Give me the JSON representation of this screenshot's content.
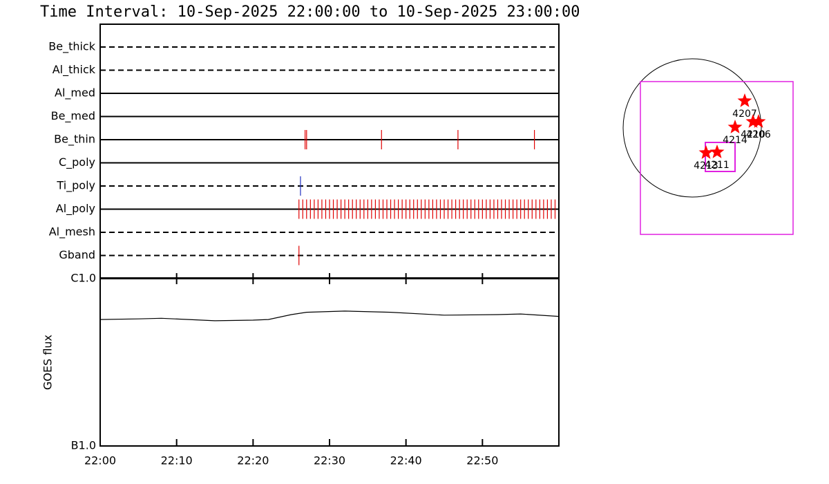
{
  "title": "Time Interval: 10-Sep-2025 22:00:00 to 10-Sep-2025 23:00:00",
  "chart_data": [
    {
      "type": "timeline",
      "categories": [
        "Be_thick",
        "Al_thick",
        "Al_med",
        "Be_med",
        "Be_thin",
        "C_poly",
        "Ti_poly",
        "Al_poly",
        "Al_mesh",
        "Gband"
      ],
      "line_styles": [
        "dashed",
        "dashed",
        "solid",
        "solid",
        "solid",
        "solid",
        "dashed",
        "solid",
        "dashed",
        "dashed"
      ],
      "colors": [
        "#e00000",
        "#e00000",
        "#e00000",
        "#e00000",
        "#e00000",
        "#e00000",
        "#2030c0",
        "#e00000",
        "#e00000",
        "#e00000"
      ],
      "events": [
        [],
        [],
        [],
        [],
        [
          1346.8,
          1347.0,
          1356.8,
          1366.8,
          1376.8
        ],
        [],
        [
          1346.2
        ],
        [
          1346.0,
          1346.5,
          1347.0,
          1347.5,
          1348.0,
          1348.5,
          1349.0,
          1349.5,
          1350.0,
          1350.5,
          1351.0,
          1351.5,
          1352.0,
          1352.5,
          1353.0,
          1353.5,
          1354.0,
          1354.5,
          1355.0,
          1355.5,
          1356.0,
          1356.5,
          1357.0,
          1357.5,
          1358.0,
          1358.5,
          1359.0,
          1359.5,
          1360.0,
          1360.5,
          1361.0,
          1361.5,
          1362.0,
          1362.5,
          1363.0,
          1363.5,
          1364.0,
          1364.5,
          1365.0,
          1365.5,
          1366.0,
          1366.5,
          1367.0,
          1367.5,
          1368.0,
          1368.5,
          1369.0,
          1369.5,
          1370.0,
          1370.5,
          1371.0,
          1371.5,
          1372.0,
          1372.5,
          1373.0,
          1373.5,
          1374.0,
          1374.5,
          1375.0,
          1375.5,
          1376.0,
          1376.5,
          1377.0,
          1377.5,
          1378.0,
          1378.5,
          1379.0,
          1379.5
        ],
        [],
        [
          1346.0
        ]
      ],
      "xlim": [
        1320,
        1380
      ]
    },
    {
      "type": "line",
      "ylabel": "GOES flux",
      "log_y": true,
      "color": "#000000",
      "x": [
        1320,
        1325,
        1328,
        1335,
        1340,
        1342,
        1345,
        1347,
        1352,
        1358,
        1365,
        1372,
        1375,
        1380
      ],
      "values": [
        5.7e-07,
        5.75e-07,
        5.8e-07,
        5.6e-07,
        5.65e-07,
        5.7e-07,
        6.1e-07,
        6.3e-07,
        6.4e-07,
        6.3e-07,
        6.05e-07,
        6.1e-07,
        6.15e-07,
        5.95e-07
      ],
      "xlim": [
        1320,
        1380
      ],
      "xticks": [
        {
          "value": 1320,
          "label": "22:00"
        },
        {
          "value": 1330,
          "label": "22:10"
        },
        {
          "value": 1340,
          "label": "22:20"
        },
        {
          "value": 1350,
          "label": "22:30"
        },
        {
          "value": 1360,
          "label": "22:40"
        },
        {
          "value": 1370,
          "label": "22:50"
        }
      ],
      "ylim": [
        1e-07,
        1e-06
      ],
      "yticks": [
        {
          "value": 1e-06,
          "label": "C1.0"
        },
        {
          "value": 1e-07,
          "label": "B1.0"
        }
      ]
    },
    {
      "type": "map",
      "color": "#ff0000",
      "labels": [
        "4207",
        "4214",
        "4210",
        "4206",
        "4213",
        "4211"
      ]
    }
  ]
}
